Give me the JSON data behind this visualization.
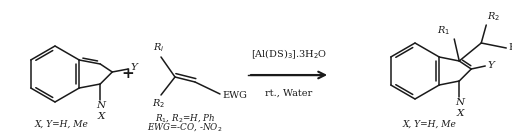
{
  "bg_color": "#ffffff",
  "fig_width": 5.12,
  "fig_height": 1.37,
  "dpi": 100,
  "text_color": "#1a1a1a",
  "bond_color": "#1a1a1a",
  "bond_lw": 1.1,
  "font_family": "DejaVu Serif",
  "reagent_label": "[Al(DS)$_3$].3H$_2$O",
  "condition_label": "rt., Water",
  "label_indole_bottom": "X, Y=H, Me",
  "label_alkene_r": "R$_1$, R$_2$=H, Ph",
  "label_alkene_ewg": "EWG=-CO, -NO$_2$",
  "label_product_bottom": "X, Y=H, Me"
}
